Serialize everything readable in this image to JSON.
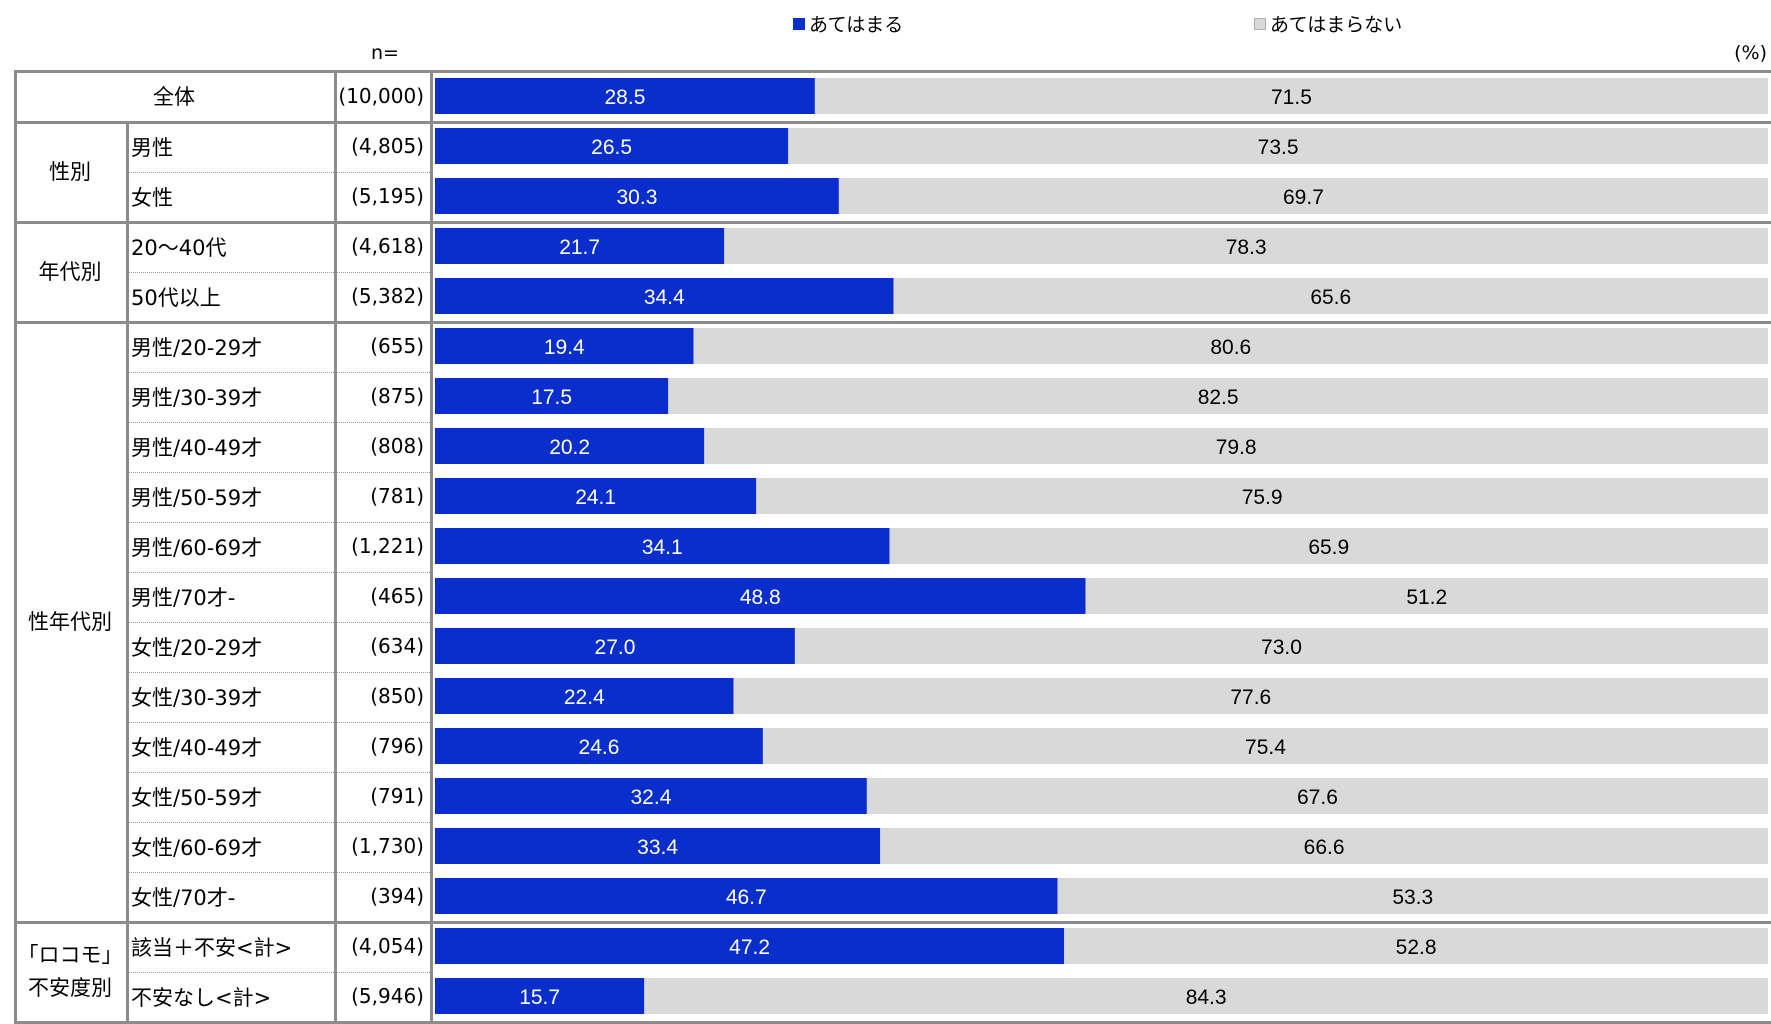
{
  "legend": {
    "yes_label": "あてはまる",
    "no_label": "あてはまらない"
  },
  "header": {
    "n_label": "n=",
    "unit_label": "(%)"
  },
  "colors": {
    "yes": "#0a2ecc",
    "no": "#d9d9d9",
    "yes_text": "#ffffff",
    "no_text": "#000000"
  },
  "groups": [
    {
      "label": "全体",
      "rows": [
        {
          "label": "",
          "n": "(10,000)"
        }
      ]
    },
    {
      "label": "性別",
      "rows": [
        {
          "label": "男性",
          "n": "(4,805)"
        },
        {
          "label": "女性",
          "n": "(5,195)"
        }
      ]
    },
    {
      "label": "年代別",
      "rows": [
        {
          "label": "20～40代",
          "n": "(4,618)"
        },
        {
          "label": "50代以上",
          "n": "(5,382)"
        }
      ]
    },
    {
      "label": "性年代別",
      "rows": [
        {
          "label": "男性/20-29才",
          "n": "(655)"
        },
        {
          "label": "男性/30-39才",
          "n": "(875)"
        },
        {
          "label": "男性/40-49才",
          "n": "(808)"
        },
        {
          "label": "男性/50-59才",
          "n": "(781)"
        },
        {
          "label": "男性/60-69才",
          "n": "(1,221)"
        },
        {
          "label": "男性/70才-",
          "n": "(465)"
        },
        {
          "label": "女性/20-29才",
          "n": "(634)"
        },
        {
          "label": "女性/30-39才",
          "n": "(850)"
        },
        {
          "label": "女性/40-49才",
          "n": "(796)"
        },
        {
          "label": "女性/50-59才",
          "n": "(791)"
        },
        {
          "label": "女性/60-69才",
          "n": "(1,730)"
        },
        {
          "label": "女性/70才-",
          "n": "(394)"
        }
      ]
    },
    {
      "label": "「ロコモ」\n不安度別",
      "rows": [
        {
          "label": "該当＋不安<計>",
          "n": "(4,054)"
        },
        {
          "label": "不安なし<計>",
          "n": "(5,946)"
        }
      ]
    }
  ],
  "chart_data": {
    "type": "bar",
    "orientation": "horizontal",
    "stacked": true,
    "xlim": [
      0,
      100
    ],
    "categories": [
      "全体",
      "男性",
      "女性",
      "20～40代",
      "50代以上",
      "男性/20-29才",
      "男性/30-39才",
      "男性/40-49才",
      "男性/50-59才",
      "男性/60-69才",
      "男性/70才-",
      "女性/20-29才",
      "女性/30-39才",
      "女性/40-49才",
      "女性/50-59才",
      "女性/60-69才",
      "女性/70才-",
      "該当＋不安<計>",
      "不安なし<計>"
    ],
    "series": [
      {
        "name": "あてはまる",
        "values": [
          28.5,
          26.5,
          30.3,
          21.7,
          34.4,
          19.4,
          17.5,
          20.2,
          24.1,
          34.1,
          48.8,
          27.0,
          22.4,
          24.6,
          32.4,
          33.4,
          46.7,
          47.2,
          15.7
        ]
      },
      {
        "name": "あてはまらない",
        "values": [
          71.5,
          73.5,
          69.7,
          78.3,
          65.6,
          80.6,
          82.5,
          79.8,
          75.9,
          65.9,
          51.2,
          73.0,
          77.6,
          75.4,
          67.6,
          66.6,
          53.3,
          52.8,
          84.3
        ]
      }
    ],
    "data_labels": [
      [
        "28.5",
        "26.5",
        "30.3",
        "21.7",
        "34.4",
        "19.4",
        "17.5",
        "20.2",
        "24.1",
        "34.1",
        "48.8",
        "27.0",
        "22.4",
        "24.6",
        "32.4",
        "33.4",
        "46.7",
        "47.2",
        "15.7"
      ],
      [
        "71.5",
        "73.5",
        "69.7",
        "78.3",
        "65.6",
        "80.6",
        "82.5",
        "79.8",
        "75.9",
        "65.9",
        "51.2",
        "73.0",
        "77.6",
        "75.4",
        "67.6",
        "66.6",
        "53.3",
        "52.8",
        "84.3"
      ]
    ],
    "legend_position": "top"
  }
}
